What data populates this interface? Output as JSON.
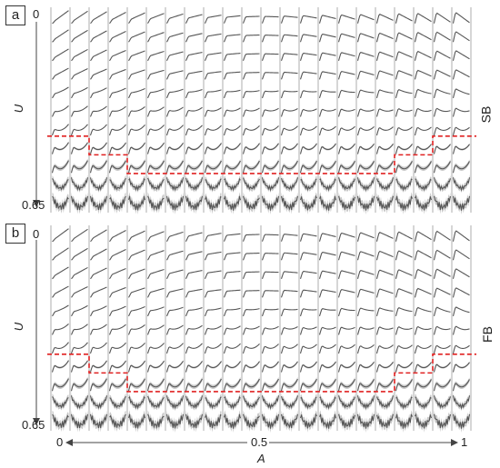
{
  "panels": [
    {
      "tag": "a",
      "u_top": "0",
      "u_bottom": "0.65",
      "u_label": "U",
      "side_label": "SB",
      "boundary_row_index": [
        7,
        7,
        8,
        8,
        9,
        9,
        9,
        9,
        9,
        9,
        9,
        9,
        9,
        9,
        9,
        9,
        9,
        9,
        8,
        8,
        7,
        7
      ]
    },
    {
      "tag": "b",
      "u_top": "0",
      "u_bottom": "0.65",
      "u_label": "U",
      "side_label": "FB",
      "boundary_row_index": [
        7,
        7,
        8,
        8,
        9,
        9,
        9,
        9,
        9,
        9,
        9,
        9,
        9,
        9,
        9,
        9,
        9,
        9,
        8,
        8,
        7,
        7
      ]
    }
  ],
  "x_axis": {
    "label": "A",
    "left": "0",
    "mid": "0.5",
    "right": "1"
  },
  "grid": {
    "columns": 22,
    "rows": 11
  },
  "colors": {
    "curve": "#555555",
    "band": "#c8c8c8",
    "boundary": "#e02020",
    "frame": "#333333"
  }
}
